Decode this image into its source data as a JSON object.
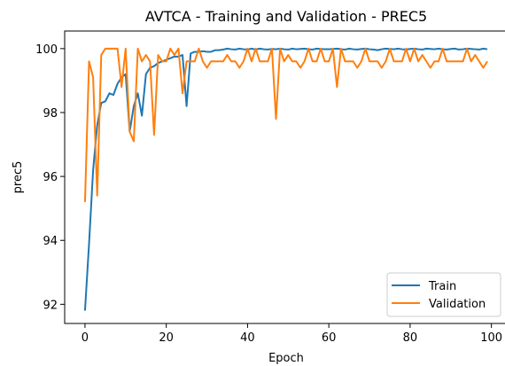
{
  "chart_data": {
    "type": "line",
    "title": "AVTCA -  Training and Validation -  PREC5",
    "xlabel": "Epoch",
    "ylabel": "prec5",
    "xlim": [
      -5,
      104
    ],
    "ylim": [
      91.4,
      100.55
    ],
    "xticks": [
      0,
      20,
      40,
      60,
      80,
      100
    ],
    "yticks": [
      92,
      94,
      96,
      98,
      100
    ],
    "legend_position": "lower-right",
    "series": [
      {
        "name": "Train",
        "color": "#1f77b4",
        "x": [
          0,
          1,
          2,
          3,
          4,
          5,
          6,
          7,
          8,
          9,
          10,
          11,
          12,
          13,
          14,
          15,
          16,
          17,
          18,
          19,
          20,
          21,
          22,
          23,
          24,
          25,
          26,
          27,
          28,
          29,
          30,
          31,
          32,
          33,
          34,
          35,
          36,
          37,
          38,
          39,
          40,
          41,
          42,
          43,
          44,
          45,
          46,
          47,
          48,
          49,
          50,
          51,
          52,
          53,
          54,
          55,
          56,
          57,
          58,
          59,
          60,
          61,
          62,
          63,
          64,
          65,
          66,
          67,
          68,
          69,
          70,
          71,
          72,
          73,
          74,
          75,
          76,
          77,
          78,
          79,
          80,
          81,
          82,
          83,
          84,
          85,
          86,
          87,
          88,
          89,
          90,
          91,
          92,
          93,
          94,
          95,
          96,
          97,
          98,
          99
        ],
        "y": [
          91.8,
          93.9,
          96.2,
          97.6,
          98.3,
          98.35,
          98.6,
          98.55,
          98.9,
          99.1,
          99.2,
          97.4,
          98.2,
          98.6,
          97.9,
          99.2,
          99.4,
          99.45,
          99.55,
          99.6,
          99.65,
          99.7,
          99.75,
          99.75,
          99.8,
          98.2,
          99.85,
          99.9,
          99.9,
          99.92,
          99.9,
          99.9,
          99.95,
          99.95,
          99.97,
          100.0,
          99.98,
          99.97,
          100.0,
          99.98,
          99.97,
          100.0,
          99.97,
          100.0,
          99.98,
          99.97,
          99.99,
          99.98,
          100.0,
          99.98,
          99.97,
          100.0,
          99.98,
          99.99,
          100.0,
          99.98,
          99.97,
          100.0,
          99.99,
          99.98,
          99.98,
          99.99,
          100.0,
          99.98,
          99.97,
          100.0,
          99.98,
          99.97,
          99.99,
          100.0,
          99.98,
          99.97,
          99.95,
          99.98,
          100.0,
          99.99,
          99.98,
          100.0,
          99.98,
          99.97,
          99.99,
          100.0,
          99.98,
          99.97,
          100.0,
          99.99,
          99.98,
          100.0,
          99.98,
          99.97,
          99.99,
          100.0,
          99.97,
          99.98,
          100.0,
          99.99,
          99.98,
          99.97,
          100.0,
          99.98
        ]
      },
      {
        "name": "Validation",
        "color": "#ff7f0e",
        "x": [
          0,
          1,
          2,
          3,
          4,
          5,
          6,
          7,
          8,
          9,
          10,
          11,
          12,
          13,
          14,
          15,
          16,
          17,
          18,
          19,
          20,
          21,
          22,
          23,
          24,
          25,
          26,
          27,
          28,
          29,
          30,
          31,
          32,
          33,
          34,
          35,
          36,
          37,
          38,
          39,
          40,
          41,
          42,
          43,
          44,
          45,
          46,
          47,
          48,
          49,
          50,
          51,
          52,
          53,
          54,
          55,
          56,
          57,
          58,
          59,
          60,
          61,
          62,
          63,
          64,
          65,
          66,
          67,
          68,
          69,
          70,
          71,
          72,
          73,
          74,
          75,
          76,
          77,
          78,
          79,
          80,
          81,
          82,
          83,
          84,
          85,
          86,
          87,
          88,
          89,
          90,
          91,
          92,
          93,
          94,
          95,
          96,
          97,
          98,
          99
        ],
        "y": [
          95.2,
          99.6,
          99.1,
          95.4,
          99.8,
          100.0,
          100.0,
          100.0,
          100.0,
          98.8,
          100.0,
          97.4,
          97.1,
          100.0,
          99.6,
          99.8,
          99.6,
          97.3,
          99.8,
          99.6,
          99.6,
          100.0,
          99.8,
          100.0,
          98.6,
          99.6,
          99.6,
          99.6,
          100.0,
          99.6,
          99.4,
          99.6,
          99.6,
          99.6,
          99.6,
          99.8,
          99.6,
          99.6,
          99.4,
          99.6,
          100.0,
          99.6,
          100.0,
          99.6,
          99.6,
          99.6,
          100.0,
          97.8,
          100.0,
          99.6,
          99.8,
          99.6,
          99.6,
          99.4,
          99.6,
          100.0,
          99.6,
          99.6,
          100.0,
          99.6,
          99.6,
          100.0,
          98.8,
          100.0,
          99.6,
          99.6,
          99.6,
          99.4,
          99.6,
          100.0,
          99.6,
          99.6,
          99.6,
          99.4,
          99.6,
          100.0,
          99.6,
          99.6,
          99.6,
          100.0,
          99.6,
          100.0,
          99.6,
          99.8,
          99.6,
          99.4,
          99.6,
          99.6,
          100.0,
          99.6,
          99.6,
          99.6,
          99.6,
          99.6,
          100.0,
          99.6,
          99.8,
          99.6,
          99.4,
          99.6
        ]
      }
    ]
  }
}
